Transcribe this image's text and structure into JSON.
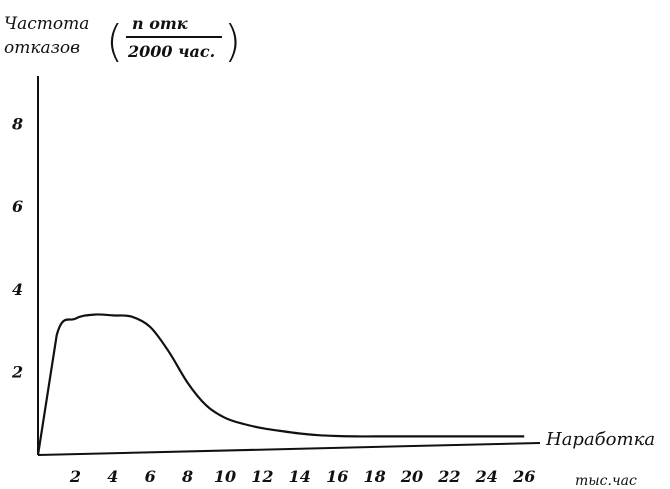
{
  "chart_data": {
    "type": "line",
    "title": "",
    "ylabel_lines": [
      "Частота",
      "отказов"
    ],
    "yunit_numerator": "n отк",
    "yunit_denominator": "2000 час.",
    "xlabel": "Наработка",
    "xunit": "тыс.час",
    "xticks": [
      2,
      4,
      6,
      8,
      10,
      12,
      14,
      16,
      18,
      20,
      22,
      24,
      26
    ],
    "yticks": [
      2,
      4,
      6,
      8
    ],
    "xlim": [
      0,
      28
    ],
    "ylim": [
      0,
      10
    ],
    "grid": false,
    "series": [
      {
        "x": [
          0,
          1,
          2,
          3,
          4,
          5,
          6,
          7,
          8,
          9,
          10,
          11,
          12,
          13,
          14,
          15,
          16,
          17,
          18,
          20,
          22,
          24,
          26
        ],
        "values": [
          0,
          2.9,
          3.3,
          3.4,
          3.38,
          3.35,
          3.1,
          2.5,
          1.75,
          1.2,
          0.9,
          0.75,
          0.65,
          0.58,
          0.52,
          0.48,
          0.46,
          0.45,
          0.45,
          0.45,
          0.45,
          0.45,
          0.45
        ]
      }
    ]
  }
}
